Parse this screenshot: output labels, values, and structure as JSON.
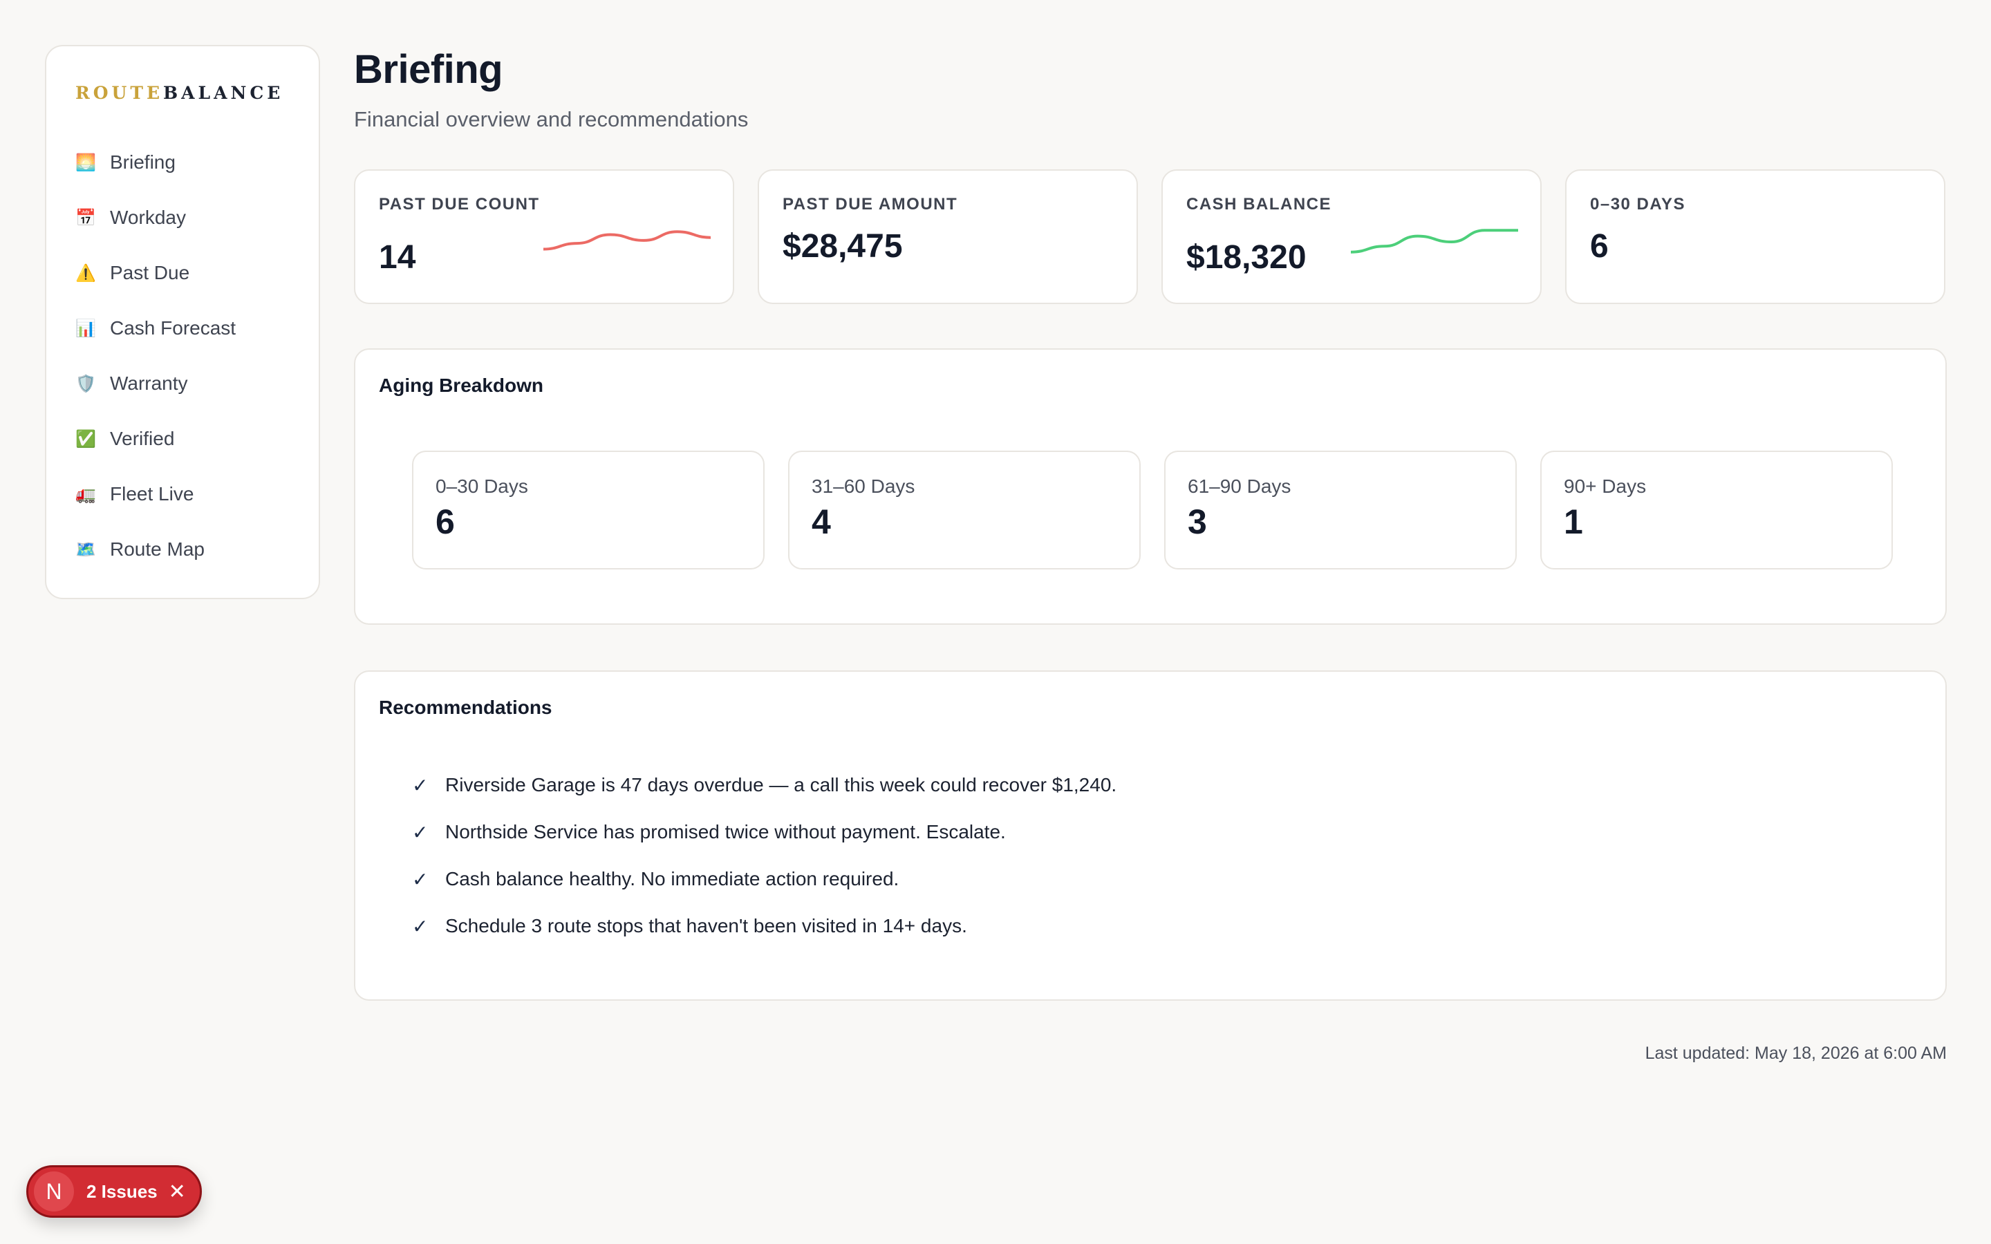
{
  "brand": {
    "part1": "ROUTE",
    "part2": "BALANCE"
  },
  "sidebar": {
    "items": [
      {
        "icon": "🌅",
        "icon_name": "sunrise-icon",
        "label": "Briefing"
      },
      {
        "icon": "📅",
        "icon_name": "calendar-icon",
        "label": "Workday"
      },
      {
        "icon": "⚠️",
        "icon_name": "warning-icon",
        "label": "Past Due"
      },
      {
        "icon": "📊",
        "icon_name": "bar-chart-icon",
        "label": "Cash Forecast"
      },
      {
        "icon": "🛡️",
        "icon_name": "shield-icon",
        "label": "Warranty"
      },
      {
        "icon": "✅",
        "icon_name": "check-box-icon",
        "label": "Verified"
      },
      {
        "icon": "🚛",
        "icon_name": "truck-icon",
        "label": "Fleet Live"
      },
      {
        "icon": "🗺️",
        "icon_name": "map-icon",
        "label": "Route Map"
      }
    ]
  },
  "header": {
    "title": "Briefing",
    "subtitle": "Financial overview and recommendations"
  },
  "stats": [
    {
      "label": "PAST DUE COUNT",
      "value": "14",
      "trend": [
        0.25,
        0.45,
        0.75,
        0.55,
        0.85,
        0.65
      ],
      "trend_color": "#ec6a64"
    },
    {
      "label": "PAST DUE AMOUNT",
      "value": "$28,475"
    },
    {
      "label": "CASH BALANCE",
      "value": "$18,320",
      "trend": [
        0.15,
        0.35,
        0.7,
        0.5,
        0.9,
        0.9
      ],
      "trend_color": "#4ccf7a"
    },
    {
      "label": "0–30 DAYS",
      "value": "6"
    }
  ],
  "aging": {
    "title": "Aging Breakdown",
    "buckets": [
      {
        "label": "0–30 Days",
        "value": "6"
      },
      {
        "label": "31–60 Days",
        "value": "4"
      },
      {
        "label": "61–90 Days",
        "value": "3"
      },
      {
        "label": "90+ Days",
        "value": "1"
      }
    ]
  },
  "recommendations": {
    "title": "Recommendations",
    "check_glyph": "✓",
    "items": [
      "Riverside Garage is 47 days overdue — a call this week could recover $1,240.",
      "Northside Service has promised twice without payment. Escalate.",
      "Cash balance healthy. No immediate action required.",
      "Schedule 3 route stops that haven't been visited in 14+ days."
    ]
  },
  "footer": {
    "last_updated": "Last updated: May 18, 2026 at 6:00 AM"
  },
  "issues_badge": {
    "avatar_letter": "N",
    "label": "2 Issues",
    "close_glyph": "✕"
  },
  "colors": {
    "brand_gold": "#c9a23a",
    "text_dark": "#131a2a",
    "badge_red": "#d22c33",
    "background": "#f9f8f6"
  }
}
